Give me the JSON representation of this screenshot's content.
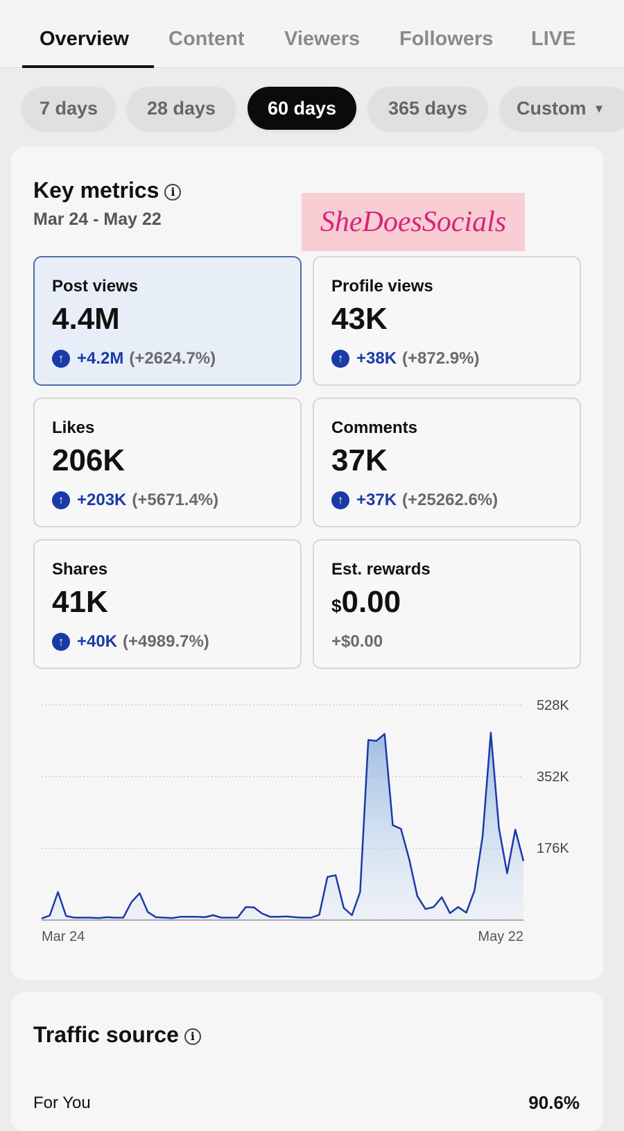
{
  "tabs": [
    {
      "label": "Overview"
    },
    {
      "label": "Content"
    },
    {
      "label": "Viewers"
    },
    {
      "label": "Followers"
    },
    {
      "label": "LIVE"
    }
  ],
  "ranges": [
    {
      "label": "7 days"
    },
    {
      "label": "28 days"
    },
    {
      "label": "60 days"
    },
    {
      "label": "365 days"
    },
    {
      "label": "Custom"
    }
  ],
  "selected_range": "60 days",
  "key_metrics": {
    "title": "Key metrics",
    "date_range": "Mar 24 - May 22",
    "watermark": "SheDoesSocials"
  },
  "metrics": [
    {
      "label": "Post views",
      "value": "4.4M",
      "delta": "+4.2M",
      "pct": "(+2624.7%)"
    },
    {
      "label": "Profile views",
      "value": "43K",
      "delta": "+38K",
      "pct": "(+872.9%)"
    },
    {
      "label": "Likes",
      "value": "206K",
      "delta": "+203K",
      "pct": "(+5671.4%)"
    },
    {
      "label": "Comments",
      "value": "37K",
      "delta": "+37K",
      "pct": "(+25262.6%)"
    },
    {
      "label": "Shares",
      "value": "41K",
      "delta": "+40K",
      "pct": "(+4989.7%)"
    },
    {
      "label": "Est. rewards",
      "currency": "$",
      "value": "0.00",
      "delta": "+$0.00"
    }
  ],
  "chart_data": {
    "type": "area",
    "title": "Post views",
    "xlabel": "",
    "ylabel": "",
    "x_tick_labels": [
      "Mar 24",
      "May 22"
    ],
    "y_ticks": [
      {
        "value": 176000,
        "label": "176K"
      },
      {
        "value": 352000,
        "label": "352K"
      },
      {
        "value": 528000,
        "label": "528K"
      }
    ],
    "ylim": [
      0,
      528000
    ],
    "grid": true,
    "color": "#1a3aa8",
    "values": [
      4,
      11,
      69,
      10,
      6,
      6,
      6,
      5,
      7,
      6,
      6,
      44,
      66,
      20,
      7,
      6,
      5,
      8,
      8,
      8,
      7,
      12,
      6,
      6,
      6,
      32,
      31,
      16,
      8,
      8,
      9,
      7,
      6,
      6,
      13,
      106,
      110,
      30,
      12,
      69,
      442,
      440,
      457,
      233,
      224,
      150,
      59,
      27,
      32,
      56,
      17,
      32,
      18,
      72,
      206,
      460,
      225,
      115,
      222,
      145
    ],
    "value_unit": "K"
  },
  "traffic": {
    "title": "Traffic source",
    "rows": [
      {
        "label": "For You",
        "value": "90.6%"
      }
    ]
  }
}
